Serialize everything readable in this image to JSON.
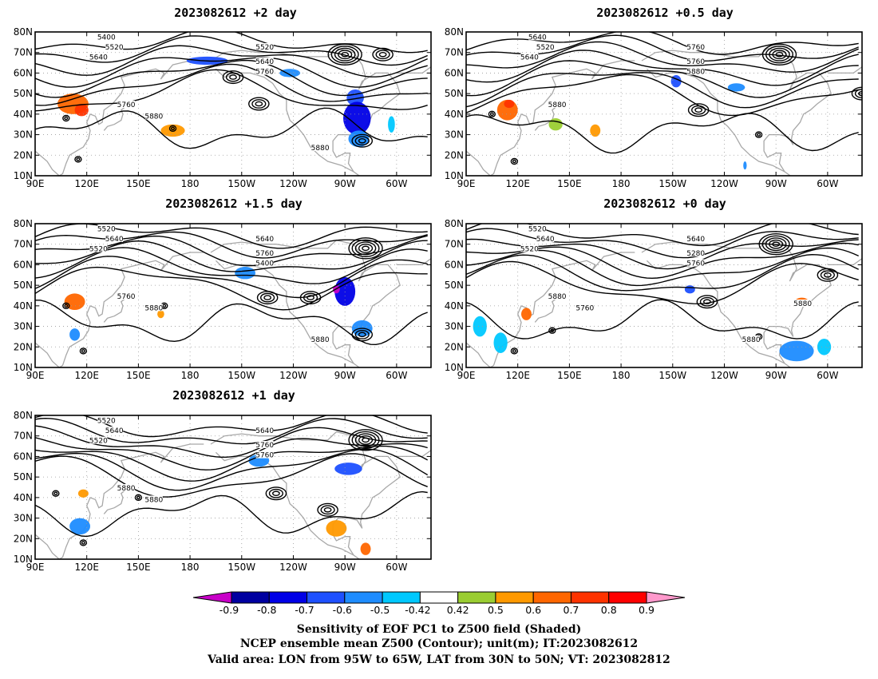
{
  "panels": [
    {
      "title": "2023082612 +2 day",
      "lows": [
        [
          -90,
          69
        ],
        [
          -68,
          69
        ],
        [
          -20,
          45
        ],
        [
          -140,
          45
        ],
        [
          -80,
          27
        ],
        [
          -155,
          58
        ]
      ],
      "highs": [
        [
          115,
          18
        ],
        [
          108,
          38
        ],
        [
          170,
          33
        ]
      ],
      "contour_labels": [
        "5400",
        "5520",
        "5640",
        "5520",
        "5640",
        "5760",
        "5760",
        "5880",
        "5880"
      ],
      "shading": [
        {
          "lon": 112,
          "lat": 45,
          "rx": 9,
          "ry": 5,
          "v": 0.65
        },
        {
          "lon": 117,
          "lat": 42,
          "rx": 4,
          "ry": 3,
          "v": 0.78
        },
        {
          "lon": 170,
          "lat": 32,
          "rx": 7,
          "ry": 3,
          "v": 0.55
        },
        {
          "lon": -170,
          "lat": 66,
          "rx": 12,
          "ry": 2,
          "v": -0.6
        },
        {
          "lon": -122,
          "lat": 60,
          "rx": 6,
          "ry": 2,
          "v": -0.5
        },
        {
          "lon": -84,
          "lat": 48,
          "rx": 5,
          "ry": 4,
          "v": -0.6
        },
        {
          "lon": -83,
          "lat": 38,
          "rx": 8,
          "ry": 8,
          "v": -0.78
        },
        {
          "lon": -82,
          "lat": 28,
          "rx": 6,
          "ry": 4,
          "v": -0.5
        },
        {
          "lon": -63,
          "lat": 35,
          "rx": 2,
          "ry": 4,
          "v": -0.45
        }
      ]
    },
    {
      "title": "2023082612 +0.5 day",
      "lows": [
        [
          -88,
          69
        ],
        [
          -135,
          42
        ],
        [
          -40,
          50
        ]
      ],
      "highs": [
        [
          118,
          17
        ],
        [
          105,
          40
        ],
        [
          -100,
          30
        ]
      ],
      "contour_labels": [
        "5640",
        "5520",
        "5640",
        "5760",
        "5760",
        "5880",
        "5880"
      ],
      "shading": [
        {
          "lon": 114,
          "lat": 42,
          "rx": 6,
          "ry": 5,
          "v": 0.7
        },
        {
          "lon": 115,
          "lat": 45,
          "rx": 3,
          "ry": 2,
          "v": 0.8
        },
        {
          "lon": 142,
          "lat": 35,
          "rx": 4,
          "ry": 3,
          "v": 0.5
        },
        {
          "lon": 165,
          "lat": 32,
          "rx": 3,
          "ry": 3,
          "v": 0.55
        },
        {
          "lon": -148,
          "lat": 56,
          "rx": 3,
          "ry": 3,
          "v": -0.6
        },
        {
          "lon": -113,
          "lat": 53,
          "rx": 5,
          "ry": 2,
          "v": -0.5
        },
        {
          "lon": -108,
          "lat": 15,
          "rx": 1,
          "ry": 2,
          "v": -0.5
        }
      ]
    },
    {
      "title": "2023082612 +1.5 day",
      "lows": [
        [
          -78,
          68
        ],
        [
          -135,
          44
        ],
        [
          -110,
          44
        ],
        [
          -80,
          26
        ]
      ],
      "highs": [
        [
          118,
          18
        ],
        [
          108,
          40
        ],
        [
          165,
          40
        ]
      ],
      "contour_labels": [
        "5520",
        "5640",
        "5520",
        "5640",
        "5760",
        "5400",
        "5760",
        "5880",
        "5880"
      ],
      "shading": [
        {
          "lon": 113,
          "lat": 42,
          "rx": 6,
          "ry": 4,
          "v": 0.65
        },
        {
          "lon": 113,
          "lat": 26,
          "rx": 3,
          "ry": 3,
          "v": -0.5
        },
        {
          "lon": 163,
          "lat": 36,
          "rx": 2,
          "ry": 2,
          "v": 0.55
        },
        {
          "lon": -148,
          "lat": 56,
          "rx": 6,
          "ry": 3,
          "v": -0.55
        },
        {
          "lon": -90,
          "lat": 47,
          "rx": 6,
          "ry": 7,
          "v": -0.75
        },
        {
          "lon": -80,
          "lat": 29,
          "rx": 6,
          "ry": 4,
          "v": -0.5
        },
        {
          "lon": -95,
          "lat": 48,
          "rx": 2,
          "ry": 2,
          "v": -0.9
        }
      ]
    },
    {
      "title": "2023082612 +0",
      "lows": [
        [
          -90,
          70
        ],
        [
          -130,
          42
        ],
        [
          -60,
          55
        ]
      ],
      "highs": [
        [
          118,
          18
        ],
        [
          140,
          28
        ],
        [
          -100,
          25
        ]
      ],
      "contour_labels": [
        "5520",
        "5640",
        "5520",
        "5640",
        "5280",
        "5760",
        "5880",
        "5760",
        "5880",
        "5880"
      ],
      "shading": [
        {
          "lon": 125,
          "lat": 36,
          "rx": 3,
          "ry": 3,
          "v": 0.7
        },
        {
          "lon": 98,
          "lat": 30,
          "rx": 4,
          "ry": 5,
          "v": -0.45
        },
        {
          "lon": 110,
          "lat": 22,
          "rx": 4,
          "ry": 5,
          "v": -0.45
        },
        {
          "lon": -140,
          "lat": 48,
          "rx": 3,
          "ry": 2,
          "v": -0.6
        },
        {
          "lon": -75,
          "lat": 42,
          "rx": 4,
          "ry": 2,
          "v": 0.7
        },
        {
          "lon": -78,
          "lat": 18,
          "rx": 10,
          "ry": 5,
          "v": -0.5
        },
        {
          "lon": -62,
          "lat": 20,
          "rx": 4,
          "ry": 4,
          "v": -0.45
        }
      ]
    },
    {
      "title": "2023082612 +1 day",
      "lows": [
        [
          -78,
          68
        ],
        [
          -130,
          42
        ],
        [
          -100,
          34
        ]
      ],
      "highs": [
        [
          118,
          18
        ],
        [
          150,
          40
        ],
        [
          102,
          42
        ]
      ],
      "contour_labels": [
        "5520",
        "5640",
        "5520",
        "5640",
        "5760",
        "5760",
        "5880",
        "5880"
      ],
      "shading": [
        {
          "lon": 116,
          "lat": 26,
          "rx": 6,
          "ry": 4,
          "v": -0.55
        },
        {
          "lon": 118,
          "lat": 42,
          "rx": 3,
          "ry": 2,
          "v": 0.55
        },
        {
          "lon": -140,
          "lat": 58,
          "rx": 6,
          "ry": 3,
          "v": -0.55
        },
        {
          "lon": -88,
          "lat": 54,
          "rx": 8,
          "ry": 3,
          "v": -0.6
        },
        {
          "lon": -95,
          "lat": 25,
          "rx": 6,
          "ry": 4,
          "v": 0.55
        },
        {
          "lon": -78,
          "lat": 15,
          "rx": 3,
          "ry": 3,
          "v": 0.7
        }
      ]
    }
  ],
  "axes": {
    "lon_ticks": [
      90,
      120,
      150,
      180,
      -150,
      -120,
      -90,
      -60
    ],
    "lon_tick_labels": [
      "90E",
      "120E",
      "150E",
      "180",
      "150W",
      "120W",
      "90W",
      "60W"
    ],
    "lat_ticks": [
      10,
      20,
      30,
      40,
      50,
      60,
      70,
      80
    ],
    "lat_tick_labels": [
      "10N",
      "20N",
      "30N",
      "40N",
      "50N",
      "60N",
      "70N",
      "80N"
    ],
    "lon_range": [
      90,
      320
    ],
    "lat_range": [
      10,
      80
    ]
  },
  "colorbar": {
    "tick_labels": [
      "-0.9",
      "-0.8",
      "-0.7",
      "-0.6",
      "-0.5",
      "-0.42",
      "0.42",
      "0.5",
      "0.6",
      "0.7",
      "0.8",
      "0.9"
    ],
    "colors": [
      "#c800c8",
      "#0000a0",
      "#0000e6",
      "#1e50ff",
      "#1e8cff",
      "#00c8ff",
      "#ffffff",
      "#9acd32",
      "#ff9900",
      "#ff6600",
      "#ff3300",
      "#ff0000",
      "#ff99cc"
    ]
  },
  "caption": {
    "line1": "Sensitivity of EOF PC1 to Z500 field (Shaded)",
    "line2": "NCEP ensemble mean Z500 (Contour); unit(m); IT:2023082612",
    "line3": "Valid area: LON from 95W to 65W, LAT from 30N to 50N; VT: 2023082812"
  },
  "panel_title_suffix": "day"
}
